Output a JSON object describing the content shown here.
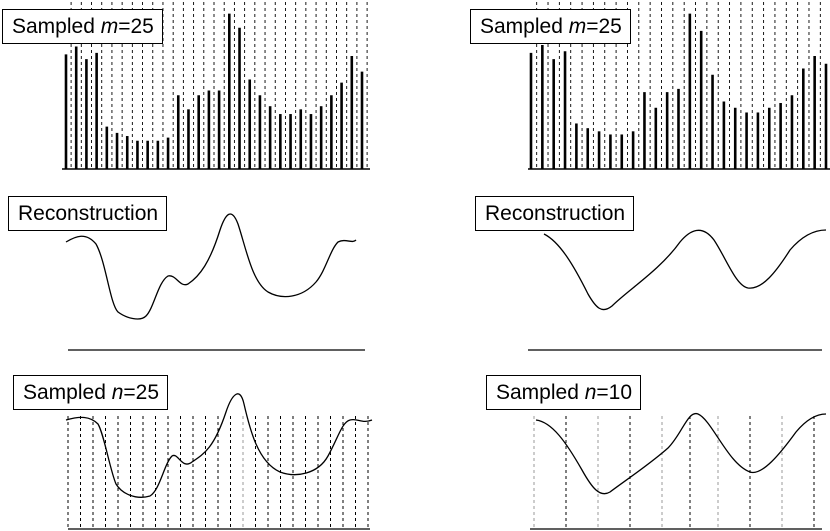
{
  "colors": {
    "ink": "#000000",
    "grid_dark": "#000000",
    "grid_light": "#9a9a9a",
    "background": "#ffffff"
  },
  "panels": {
    "top_left": {
      "label": {
        "prefix": "Sampled ",
        "var": "m",
        "suffix": "=25"
      },
      "bars": [
        0.73,
        0.78,
        0.7,
        0.74,
        0.27,
        0.23,
        0.21,
        0.18,
        0.18,
        0.18,
        0.2,
        0.47,
        0.38,
        0.47,
        0.5,
        0.5,
        0.99,
        0.9,
        0.57,
        0.47,
        0.4,
        0.35,
        0.35,
        0.38,
        0.35,
        0.4,
        0.47,
        0.55,
        0.72,
        0.62
      ]
    },
    "top_right": {
      "label": {
        "prefix": "Sampled ",
        "var": "m",
        "suffix": "=25"
      },
      "bars": [
        0.74,
        0.79,
        0.7,
        0.75,
        0.29,
        0.26,
        0.24,
        0.22,
        0.22,
        0.24,
        0.49,
        0.39,
        0.49,
        0.51,
        0.99,
        0.88,
        0.6,
        0.43,
        0.39,
        0.36,
        0.36,
        0.39,
        0.42,
        0.47,
        0.64,
        0.72,
        0.67
      ]
    },
    "mid_left": {
      "label": "Reconstruction"
    },
    "mid_right": {
      "label": "Reconstruction"
    },
    "bottom_left": {
      "label": {
        "prefix": "Sampled ",
        "var": "n",
        "suffix": "=25"
      }
    },
    "bottom_right": {
      "label": {
        "prefix": "Sampled ",
        "var": "n",
        "suffix": "=10"
      }
    }
  }
}
